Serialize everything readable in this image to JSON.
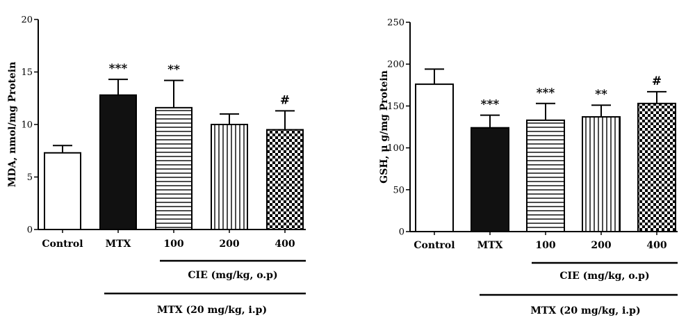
{
  "chart_data": [
    {
      "type": "bar",
      "ylabel": "MDA, nmol/mg Protein",
      "ylim": [
        0,
        20
      ],
      "yticks": [
        "0",
        "5",
        "10",
        "15",
        "20"
      ],
      "categories": [
        "Control",
        "MTX",
        "100",
        "200",
        "400"
      ],
      "values": [
        7.3,
        12.8,
        11.6,
        10.0,
        9.5
      ],
      "errors": [
        0.7,
        1.5,
        2.6,
        1.0,
        1.8
      ],
      "annotations": [
        "",
        "***",
        "**",
        "",
        "#"
      ],
      "patterns": [
        "white",
        "black",
        "horizontal-lines",
        "vertical-lines",
        "checkerboard"
      ],
      "groups": [
        {
          "label": "CIE (mg/kg, o.p)",
          "categories": [
            "100",
            "200",
            "400"
          ]
        },
        {
          "label": "MTX (20 mg/kg, i.p)",
          "categories": [
            "MTX",
            "100",
            "200",
            "400"
          ]
        }
      ]
    },
    {
      "type": "bar",
      "ylabel": "GSH, μ g/mg Protein",
      "ylim": [
        0,
        250
      ],
      "yticks": [
        "0",
        "50",
        "100",
        "150",
        "200",
        "250"
      ],
      "categories": [
        "Control",
        "MTX",
        "100",
        "200",
        "400"
      ],
      "values": [
        176,
        124,
        133,
        137,
        153
      ],
      "errors": [
        18,
        15,
        20,
        14,
        14
      ],
      "annotations": [
        "",
        "***",
        "***",
        "**",
        "#"
      ],
      "patterns": [
        "white",
        "black",
        "horizontal-lines",
        "vertical-lines",
        "checkerboard"
      ],
      "groups": [
        {
          "label": "CIE (mg/kg, o.p)",
          "categories": [
            "100",
            "200",
            "400"
          ]
        },
        {
          "label": "MTX (20 mg/kg, i.p)",
          "categories": [
            "MTX",
            "100",
            "200",
            "400"
          ]
        }
      ]
    }
  ]
}
